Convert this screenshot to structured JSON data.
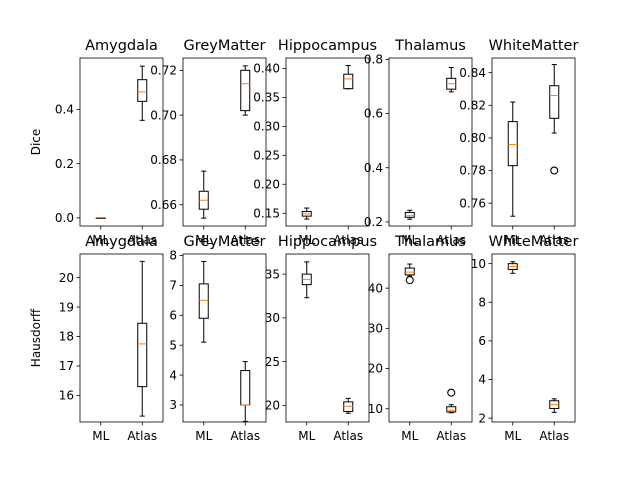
{
  "chart_data": {
    "type": "box",
    "categories": [
      "ML",
      "Atlas"
    ],
    "rows": [
      {
        "ylabel": "Dice",
        "panels": [
          {
            "title": "Amygdala",
            "ylim": [
              -0.03,
              0.59
            ],
            "yticks": [
              "0.0",
              "0.2",
              "0.4"
            ],
            "ytick_values": [
              0.0,
              0.2,
              0.4
            ],
            "boxes": [
              {
                "category": "ML",
                "whislo": 0.0,
                "q1": 0.0,
                "median": 0.0,
                "q3": 0.0,
                "whishi": 0.0,
                "fliers": []
              },
              {
                "category": "Atlas",
                "whislo": 0.36,
                "q1": 0.43,
                "median": 0.465,
                "q3": 0.51,
                "whishi": 0.56,
                "fliers": []
              }
            ]
          },
          {
            "title": "GreyMatter",
            "ylim": [
              0.6505,
              0.7255
            ],
            "yticks": [
              "0.66",
              "0.68",
              "0.70",
              "0.72"
            ],
            "ytick_values": [
              0.66,
              0.68,
              0.7,
              0.72
            ],
            "boxes": [
              {
                "category": "ML",
                "whislo": 0.654,
                "q1": 0.658,
                "median": 0.662,
                "q3": 0.666,
                "whishi": 0.675,
                "fliers": []
              },
              {
                "category": "Atlas",
                "whislo": 0.7,
                "q1": 0.702,
                "median": 0.714,
                "q3": 0.72,
                "whishi": 0.722,
                "fliers": []
              }
            ]
          },
          {
            "title": "Hippocampus",
            "ylim": [
              0.128,
              0.418
            ],
            "yticks": [
              "0.15",
              "0.20",
              "0.25",
              "0.30",
              "0.35",
              "0.40"
            ],
            "ytick_values": [
              0.15,
              0.2,
              0.25,
              0.3,
              0.35,
              0.4
            ],
            "boxes": [
              {
                "category": "ML",
                "whislo": 0.14,
                "q1": 0.145,
                "median": 0.149,
                "q3": 0.153,
                "whishi": 0.159,
                "fliers": []
              },
              {
                "category": "Atlas",
                "whislo": 0.365,
                "q1": 0.365,
                "median": 0.382,
                "q3": 0.39,
                "whishi": 0.405,
                "fliers": []
              }
            ]
          },
          {
            "title": "Thalamus",
            "ylim": [
              0.185,
              0.805
            ],
            "yticks": [
              "0.2",
              "0.4",
              "0.6",
              "0.8"
            ],
            "ytick_values": [
              0.2,
              0.4,
              0.6,
              0.8
            ],
            "boxes": [
              {
                "category": "ML",
                "whislo": 0.21,
                "q1": 0.217,
                "median": 0.223,
                "q3": 0.235,
                "whishi": 0.243,
                "fliers": []
              },
              {
                "category": "Atlas",
                "whislo": 0.68,
                "q1": 0.69,
                "median": 0.71,
                "q3": 0.73,
                "whishi": 0.77,
                "fliers": []
              }
            ]
          },
          {
            "title": "WhiteMatter",
            "ylim": [
              0.746,
              0.849
            ],
            "yticks": [
              "0.76",
              "0.78",
              "0.80",
              "0.82",
              "0.84"
            ],
            "ytick_values": [
              0.76,
              0.78,
              0.8,
              0.82,
              0.84
            ],
            "boxes": [
              {
                "category": "ML",
                "whislo": 0.752,
                "q1": 0.783,
                "median": 0.796,
                "q3": 0.81,
                "whishi": 0.822,
                "fliers": []
              },
              {
                "category": "Atlas",
                "whislo": 0.803,
                "q1": 0.812,
                "median": 0.826,
                "q3": 0.832,
                "whishi": 0.845,
                "fliers": [
                  0.78
                ]
              }
            ]
          }
        ]
      },
      {
        "ylabel": "Hausdorff",
        "panels": [
          {
            "title": "Amygdala",
            "ylim": [
              15.1,
              20.8
            ],
            "yticks": [
              "16",
              "17",
              "18",
              "19",
              "20"
            ],
            "ytick_values": [
              16,
              17,
              18,
              19,
              20
            ],
            "boxes": [
              {
                "category": "ML",
                "whislo": null,
                "q1": null,
                "median": null,
                "q3": null,
                "whishi": null,
                "fliers": []
              },
              {
                "category": "Atlas",
                "whislo": 15.3,
                "q1": 16.3,
                "median": 17.75,
                "q3": 18.45,
                "whishi": 20.55,
                "fliers": []
              }
            ]
          },
          {
            "title": "GreyMatter",
            "ylim": [
              2.43,
              8.05
            ],
            "yticks": [
              "3",
              "4",
              "5",
              "6",
              "7",
              "8"
            ],
            "ytick_values": [
              3,
              4,
              5,
              6,
              7,
              8
            ],
            "boxes": [
              {
                "category": "ML",
                "whislo": 5.1,
                "q1": 5.9,
                "median": 6.5,
                "q3": 7.05,
                "whishi": 7.8,
                "fliers": []
              },
              {
                "category": "Atlas",
                "whislo": 2.45,
                "q1": 3.0,
                "median": 3.0,
                "q3": 4.15,
                "whishi": 4.45,
                "fliers": []
              }
            ]
          },
          {
            "title": "Hippocampus",
            "ylim": [
              18.1,
              37.3
            ],
            "yticks": [
              "20",
              "25",
              "30",
              "35"
            ],
            "ytick_values": [
              20,
              25,
              30,
              35
            ],
            "boxes": [
              {
                "category": "ML",
                "whislo": 32.3,
                "q1": 33.8,
                "median": 34.4,
                "q3": 35.0,
                "whishi": 36.4,
                "fliers": []
              },
              {
                "category": "Atlas",
                "whislo": 19.1,
                "q1": 19.3,
                "median": 19.9,
                "q3": 20.4,
                "whishi": 20.8,
                "fliers": []
              }
            ]
          },
          {
            "title": "Thalamus",
            "ylim": [
              6.7,
              48.5
            ],
            "yticks": [
              "10",
              "20",
              "30",
              "40"
            ],
            "ytick_values": [
              10,
              20,
              30,
              40
            ],
            "boxes": [
              {
                "category": "ML",
                "whislo": 43.0,
                "q1": 43.3,
                "median": 44.0,
                "q3": 45.0,
                "whishi": 46.0,
                "fliers": [
                  42.0
                ]
              },
              {
                "category": "Atlas",
                "whislo": 9.0,
                "q1": 9.2,
                "median": 9.6,
                "q3": 10.5,
                "whishi": 11.0,
                "fliers": [
                  14.0
                ]
              }
            ]
          },
          {
            "title": "WhiteMatter",
            "ylim": [
              1.8,
              10.5
            ],
            "yticks": [
              "2",
              "4",
              "6",
              "8",
              "10"
            ],
            "ytick_values": [
              2,
              4,
              6,
              8,
              10
            ],
            "boxes": [
              {
                "category": "ML",
                "whislo": 9.5,
                "q1": 9.7,
                "median": 9.85,
                "q3": 10.0,
                "whishi": 10.1,
                "fliers": []
              },
              {
                "category": "Atlas",
                "whislo": 2.3,
                "q1": 2.5,
                "median": 2.7,
                "q3": 2.9,
                "whishi": 3.0,
                "fliers": []
              }
            ]
          }
        ]
      }
    ]
  },
  "colors": {
    "median": "#ff7f0e",
    "box": "#000000",
    "flier": "#000000"
  }
}
